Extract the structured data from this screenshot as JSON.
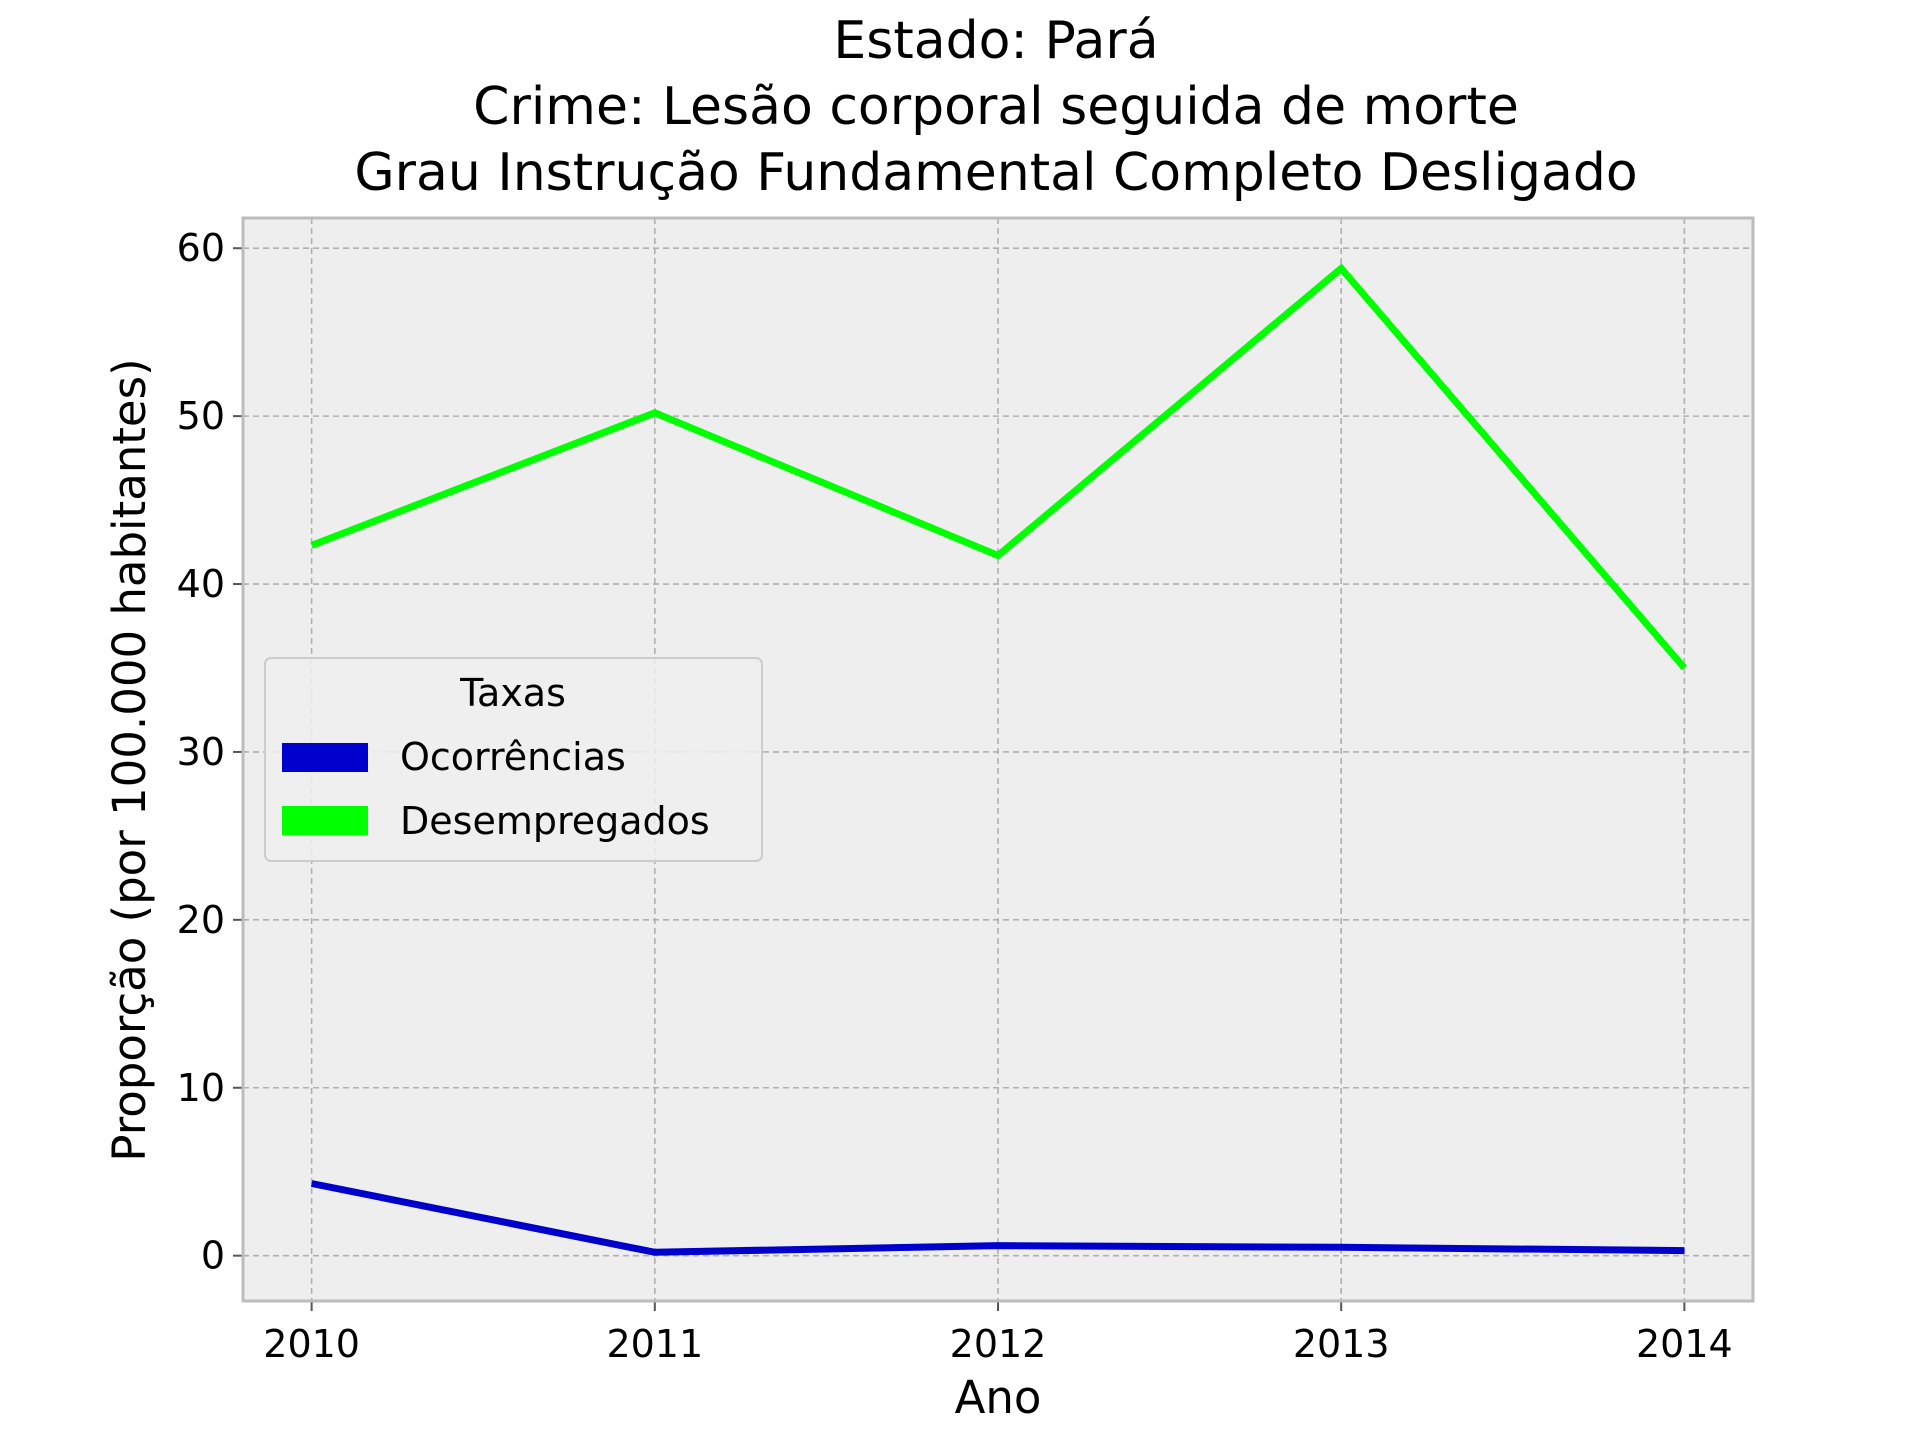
{
  "chart_data": {
    "type": "line",
    "title": [
      "Estado: Pará",
      "Crime: Lesão corporal seguida de morte",
      "Grau Instrução  Fundamental Completo   Desligado"
    ],
    "xlabel": "Ano",
    "ylabel": "Proporção (por 100.000 habitantes)",
    "x": [
      "2010",
      "2011",
      "2012",
      "2013",
      "2014"
    ],
    "xlim": [
      2009.8,
      2014.2
    ],
    "ylim": [
      -2.7,
      61.8
    ],
    "yticks": [
      0,
      10,
      20,
      30,
      40,
      50,
      60
    ],
    "grid": true,
    "legend": {
      "title": "Taxas",
      "position": "center-left"
    },
    "series": [
      {
        "name": "Ocorrências",
        "color": "#0000cc",
        "values": [
          4.3,
          0.2,
          0.6,
          0.5,
          0.3
        ]
      },
      {
        "name": "Desempregados",
        "color": "#00ff00",
        "values": [
          42.3,
          50.2,
          41.7,
          58.8,
          35.0
        ]
      }
    ]
  },
  "style": {
    "plot_background": "#eeeeee",
    "grid_color": "#b0b0b0",
    "frame_color": "#bcbcbc"
  }
}
